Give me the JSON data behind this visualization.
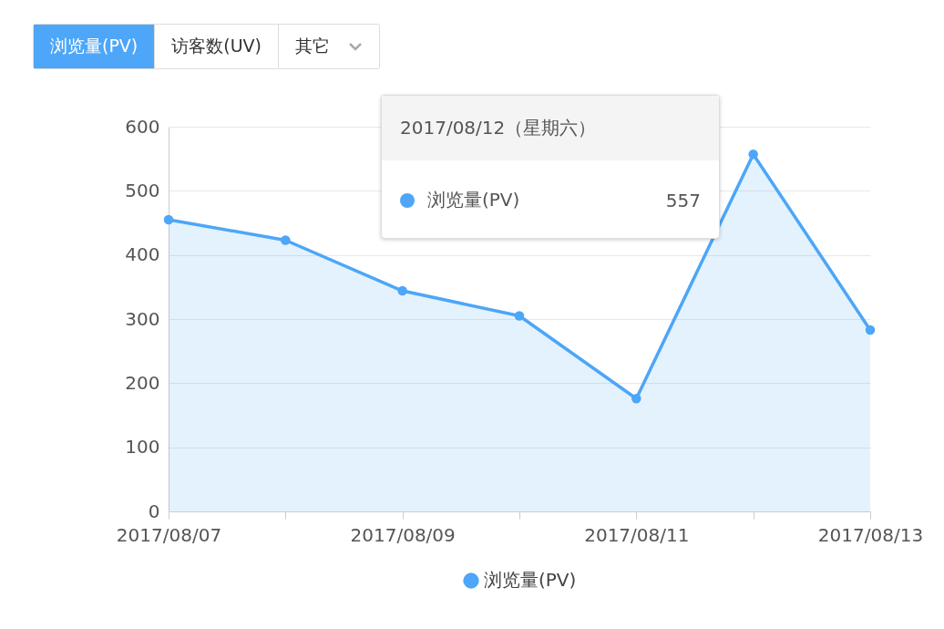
{
  "chart_data": {
    "type": "area",
    "categories": [
      "2017/08/07",
      null,
      "2017/08/09",
      null,
      "2017/08/11",
      null,
      "2017/08/13"
    ],
    "series": [
      {
        "name": "浏览量(PV)",
        "color": "#4da6f7",
        "values": [
          455,
          423,
          344,
          305,
          176,
          557,
          283
        ]
      }
    ],
    "ylim": [
      0,
      600
    ],
    "yticks": [
      0,
      100,
      200,
      300,
      400,
      500,
      600
    ],
    "grid": "y",
    "legend": "bottom",
    "marker": "circle",
    "line_style": "solid",
    "annotations": [
      "浏览量(PV)",
      "访客数(UV)",
      "其它",
      "2017/08/12（星期六）",
      "浏览量(PV)",
      "557"
    ]
  }
}
